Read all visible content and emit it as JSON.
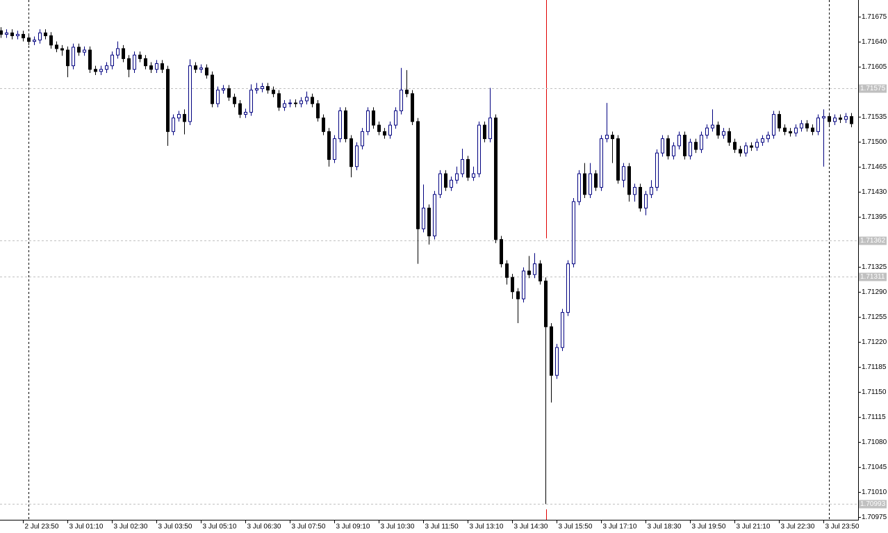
{
  "chart_data": {
    "type": "candlestick",
    "categories": [
      null,
      null,
      null,
      null,
      "2 Jul 23:50",
      null,
      null,
      null,
      null,
      null,
      null,
      null,
      "3 Jul 01:10",
      null,
      null,
      null,
      null,
      null,
      null,
      null,
      "3 Jul 02:30",
      null,
      null,
      null,
      null,
      null,
      null,
      null,
      "3 Jul 03:50",
      null,
      null,
      null,
      null,
      null,
      null,
      null,
      "3 Jul 05:10",
      null,
      null,
      null,
      null,
      null,
      null,
      null,
      "3 Jul 06:30",
      null,
      null,
      null,
      null,
      null,
      null,
      null,
      "3 Jul 07:50",
      null,
      null,
      null,
      null,
      null,
      null,
      null,
      "3 Jul 09:10",
      null,
      null,
      null,
      null,
      null,
      null,
      null,
      "3 Jul 10:30",
      null,
      null,
      null,
      null,
      null,
      null,
      null,
      "3 Jul 11:50",
      null,
      null,
      null,
      null,
      null,
      null,
      null,
      "3 Jul 13:10",
      null,
      null,
      null,
      null,
      null,
      null,
      null,
      "3 Jul 14:30",
      null,
      null,
      null,
      null,
      null,
      null,
      null,
      "3 Jul 15:50",
      null,
      null,
      null,
      null,
      null,
      null,
      null,
      "3 Jul 17:10",
      null,
      null,
      null,
      null,
      null,
      null,
      null,
      "3 Jul 18:30",
      null,
      null,
      null,
      null,
      null,
      null,
      null,
      "3 Jul 19:50",
      null,
      null,
      null,
      null,
      null,
      null,
      null,
      "3 Jul 21:10",
      null,
      null,
      null,
      null,
      null,
      null,
      null,
      "3 Jul 22:30",
      null,
      null,
      null,
      null,
      null,
      null,
      null,
      "3 Jul 23:50",
      null,
      null,
      null,
      null,
      null
    ],
    "open": [
      1.71655,
      1.7165,
      1.71652,
      1.71648,
      1.7165,
      1.71645,
      1.7164,
      1.71642,
      1.71652,
      1.71648,
      1.71635,
      1.7163,
      1.71628,
      1.71606,
      1.71632,
      1.71625,
      1.71628,
      1.71601,
      1.71598,
      1.71601,
      1.71606,
      1.71621,
      1.7163,
      1.71616,
      1.71601,
      1.71621,
      1.71616,
      1.71606,
      1.71601,
      1.71609,
      1.71601,
      1.71514,
      1.71533,
      1.71538,
      1.71528,
      1.71606,
      1.71601,
      1.71603,
      1.71593,
      1.71553,
      1.71572,
      1.71574,
      1.71562,
      1.71553,
      1.71538,
      1.71541,
      1.71572,
      1.71574,
      1.71577,
      1.71572,
      1.71567,
      1.71548,
      1.71553,
      1.71554,
      1.71553,
      1.71557,
      1.71562,
      1.71553,
      1.71533,
      1.71514,
      1.71475,
      1.71504,
      1.71543,
      1.71504,
      1.71465,
      1.71494,
      1.71514,
      1.71543,
      1.71523,
      1.71514,
      1.71509,
      1.71523,
      1.71543,
      1.71572,
      1.71567,
      1.71528,
      1.71378,
      1.71407,
      1.71368,
      1.71426,
      1.71455,
      1.71436,
      1.71446,
      1.71455,
      1.71475,
      1.7145,
      1.71455,
      1.71523,
      1.71504,
      1.71533,
      1.71363,
      1.71329,
      1.7131,
      1.7129,
      1.7128,
      1.71319,
      1.71314,
      1.71329,
      1.71305,
      1.71241,
      1.71173,
      1.71212,
      1.71261,
      1.71329,
      1.71416,
      1.71455,
      1.71426,
      1.71455,
      1.71436,
      1.71504,
      1.71509,
      1.71504,
      1.71446,
      1.71465,
      1.71426,
      1.71436,
      1.71407,
      1.71426,
      1.71436,
      1.71484,
      1.71504,
      1.7148,
      1.71494,
      1.71509,
      1.7148,
      1.71499,
      1.71489,
      1.71509,
      1.71519,
      1.71523,
      1.71509,
      1.71514,
      1.71499,
      1.71489,
      1.71484,
      1.71494,
      1.71492,
      1.71499,
      1.71504,
      1.71509,
      1.71538,
      1.71519,
      1.71514,
      1.71512,
      1.71519,
      1.71525,
      1.71519,
      1.71514,
      1.71533,
      1.71535,
      1.71528,
      1.71533,
      1.71531,
      1.71535
    ],
    "high": [
      1.7166,
      1.71657,
      1.71657,
      1.71655,
      1.71655,
      1.7165,
      1.71647,
      1.71657,
      1.71657,
      1.71653,
      1.7164,
      1.71635,
      1.71633,
      1.71637,
      1.71637,
      1.71633,
      1.71633,
      1.71606,
      1.71606,
      1.71611,
      1.71626,
      1.7164,
      1.71635,
      1.71621,
      1.71626,
      1.71626,
      1.71621,
      1.71611,
      1.71614,
      1.71614,
      1.71606,
      1.71538,
      1.71543,
      1.71545,
      1.71615,
      1.71611,
      1.71608,
      1.71608,
      1.71598,
      1.71577,
      1.71579,
      1.71579,
      1.71567,
      1.71558,
      1.71546,
      1.7158,
      1.71582,
      1.71582,
      1.71582,
      1.71577,
      1.71572,
      1.71558,
      1.71559,
      1.71559,
      1.71562,
      1.7157,
      1.71567,
      1.71558,
      1.71538,
      1.71519,
      1.71509,
      1.71548,
      1.71548,
      1.71509,
      1.71499,
      1.71519,
      1.71548,
      1.71548,
      1.71528,
      1.71519,
      1.71528,
      1.71548,
      1.71603,
      1.716,
      1.71572,
      1.71533,
      1.7144,
      1.71412,
      1.71431,
      1.7146,
      1.7146,
      1.71451,
      1.71465,
      1.7149,
      1.7148,
      1.71465,
      1.71528,
      1.71528,
      1.71575,
      1.71538,
      1.71368,
      1.71334,
      1.71315,
      1.71295,
      1.71324,
      1.7134,
      1.71344,
      1.71334,
      1.7131,
      1.71246,
      1.71217,
      1.71266,
      1.71334,
      1.71421,
      1.7146,
      1.7147,
      1.7147,
      1.7146,
      1.71509,
      1.71554,
      1.71514,
      1.71509,
      1.7147,
      1.7147,
      1.71441,
      1.71441,
      1.71431,
      1.71446,
      1.71489,
      1.71509,
      1.71509,
      1.71499,
      1.71514,
      1.71514,
      1.71504,
      1.71504,
      1.71514,
      1.71524,
      1.71545,
      1.71528,
      1.71519,
      1.71519,
      1.71504,
      1.71494,
      1.71499,
      1.71499,
      1.71504,
      1.71509,
      1.71514,
      1.71543,
      1.71543,
      1.71524,
      1.71519,
      1.71524,
      1.7153,
      1.7153,
      1.71524,
      1.71538,
      1.71545,
      1.7154,
      1.71538,
      1.71538,
      1.7154,
      1.7154
    ],
    "low": [
      1.71645,
      1.71645,
      1.71643,
      1.71643,
      1.7164,
      1.71635,
      1.71635,
      1.71637,
      1.71643,
      1.7163,
      1.71625,
      1.7162,
      1.7159,
      1.71601,
      1.7162,
      1.7162,
      1.71596,
      1.71593,
      1.71593,
      1.71596,
      1.71601,
      1.71616,
      1.71611,
      1.7159,
      1.71596,
      1.71611,
      1.71601,
      1.71596,
      1.71596,
      1.71596,
      1.71494,
      1.71509,
      1.71528,
      1.7151,
      1.71523,
      1.71596,
      1.71596,
      1.71588,
      1.71548,
      1.71548,
      1.71567,
      1.71557,
      1.71548,
      1.71533,
      1.71533,
      1.71536,
      1.71567,
      1.71569,
      1.71567,
      1.71562,
      1.71543,
      1.71543,
      1.71548,
      1.71548,
      1.71548,
      1.71552,
      1.71548,
      1.71528,
      1.71509,
      1.71465,
      1.7147,
      1.71499,
      1.71499,
      1.7145,
      1.7146,
      1.71489,
      1.71509,
      1.71518,
      1.71509,
      1.71504,
      1.71504,
      1.71518,
      1.71538,
      1.71562,
      1.71523,
      1.71329,
      1.71373,
      1.71356,
      1.71363,
      1.71421,
      1.71431,
      1.71431,
      1.71441,
      1.7145,
      1.71445,
      1.71445,
      1.7145,
      1.71499,
      1.71499,
      1.71358,
      1.71324,
      1.713,
      1.7128,
      1.71246,
      1.71275,
      1.71309,
      1.71309,
      1.713,
      1.70993,
      1.71135,
      1.71168,
      1.71207,
      1.71256,
      1.71324,
      1.71411,
      1.71421,
      1.71421,
      1.71431,
      1.71431,
      1.71499,
      1.7147,
      1.71441,
      1.71436,
      1.71416,
      1.71416,
      1.71402,
      1.71397,
      1.71421,
      1.71431,
      1.71479,
      1.71475,
      1.71475,
      1.71489,
      1.71475,
      1.71475,
      1.71484,
      1.71484,
      1.71504,
      1.71514,
      1.71504,
      1.71504,
      1.71494,
      1.71484,
      1.71479,
      1.71479,
      1.71487,
      1.71487,
      1.71494,
      1.71499,
      1.71504,
      1.71514,
      1.71509,
      1.71507,
      1.71507,
      1.71514,
      1.71514,
      1.71509,
      1.71509,
      1.71465,
      1.71523,
      1.71523,
      1.71526,
      1.71526,
      1.7152
    ],
    "close": [
      1.7165,
      1.71652,
      1.71648,
      1.7165,
      1.71645,
      1.7164,
      1.71642,
      1.71652,
      1.71648,
      1.71635,
      1.7163,
      1.71628,
      1.71606,
      1.71632,
      1.71625,
      1.71628,
      1.71601,
      1.71598,
      1.71601,
      1.71606,
      1.71621,
      1.7163,
      1.71616,
      1.71601,
      1.71621,
      1.71616,
      1.71606,
      1.71601,
      1.71609,
      1.71601,
      1.71514,
      1.71533,
      1.71538,
      1.71528,
      1.71606,
      1.71601,
      1.71603,
      1.71593,
      1.71553,
      1.71572,
      1.71574,
      1.71562,
      1.71553,
      1.71538,
      1.71541,
      1.71572,
      1.71574,
      1.71577,
      1.71572,
      1.71567,
      1.71548,
      1.71553,
      1.71554,
      1.71553,
      1.71557,
      1.71562,
      1.71553,
      1.71533,
      1.71514,
      1.71475,
      1.71504,
      1.71543,
      1.71504,
      1.71465,
      1.71494,
      1.71514,
      1.71543,
      1.71523,
      1.71514,
      1.71509,
      1.71523,
      1.71543,
      1.71572,
      1.71567,
      1.71528,
      1.71378,
      1.71407,
      1.71368,
      1.71426,
      1.71455,
      1.71436,
      1.71446,
      1.71455,
      1.71475,
      1.7145,
      1.71455,
      1.71523,
      1.71504,
      1.71533,
      1.71363,
      1.71329,
      1.7131,
      1.7129,
      1.7128,
      1.71319,
      1.71314,
      1.71329,
      1.71305,
      1.71241,
      1.71173,
      1.71212,
      1.71261,
      1.71329,
      1.71416,
      1.71455,
      1.71426,
      1.71455,
      1.71436,
      1.71504,
      1.71509,
      1.71504,
      1.71446,
      1.71465,
      1.71426,
      1.71436,
      1.71407,
      1.71426,
      1.71436,
      1.71484,
      1.71504,
      1.7148,
      1.71494,
      1.71509,
      1.7148,
      1.71499,
      1.71489,
      1.71509,
      1.71519,
      1.71523,
      1.71509,
      1.71514,
      1.71499,
      1.71489,
      1.71484,
      1.71494,
      1.71492,
      1.71499,
      1.71504,
      1.71509,
      1.71538,
      1.71519,
      1.71514,
      1.71512,
      1.71519,
      1.71525,
      1.71519,
      1.71514,
      1.71533,
      1.71535,
      1.71528,
      1.71533,
      1.71531,
      1.71535,
      1.71525
    ],
    "up_color": "#000080",
    "down_color": "#000000",
    "ylim": [
      1.70971,
      1.71698
    ],
    "yticks": [
      1.71675,
      {
        "value": 1.7164,
        "label": "1.71640"
      },
      {
        "value": 1.71605,
        "label": "1.71605"
      },
      1.71535,
      {
        "value": 1.715,
        "label": "1.71500"
      },
      1.71465,
      {
        "value": 1.7143,
        "label": "1.71430"
      },
      1.71395,
      1.71325,
      {
        "value": 1.7129,
        "label": "1.71290"
      },
      1.71255,
      {
        "value": 1.7122,
        "label": "1.71220"
      },
      1.71185,
      {
        "value": 1.7115,
        "label": "1.71150"
      },
      1.71115,
      {
        "value": 1.7108,
        "label": "1.71080"
      },
      1.71045,
      {
        "value": 1.7101,
        "label": "1.71010"
      },
      1.70975
    ],
    "levels": [
      1.71575,
      1.71362,
      1.71311,
      1.70993
    ],
    "level_color": "#c0c0c0"
  }
}
